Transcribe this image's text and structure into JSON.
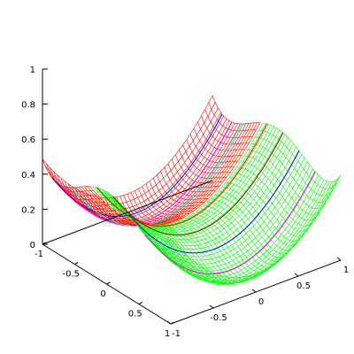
{
  "chart_data": {
    "type": "surface3d",
    "title": "",
    "xlabel": "",
    "ylabel": "",
    "zlabel": "",
    "x_range": [
      -1,
      1
    ],
    "y_range": [
      -1,
      1
    ],
    "z_range": [
      0,
      1
    ],
    "z_ticks": [
      "0",
      "0.2",
      "0.4",
      "0.6",
      "0.8",
      "1"
    ],
    "x_ticks": [
      "-1",
      "-0.5",
      "0",
      "0.5",
      "1"
    ],
    "y_ticks": [
      "-1",
      "-0.5",
      "0",
      "0.5",
      "1"
    ],
    "grid": false,
    "legend": "none",
    "colors": {
      "front_surface": "#00ff00",
      "back_surface": "#ff0000",
      "axes": "#000000",
      "contours": [
        "#0000ff",
        "#ff00ff",
        "#00ffff",
        "#ff8c00",
        "#ff0000",
        "#8b0000"
      ]
    }
  }
}
